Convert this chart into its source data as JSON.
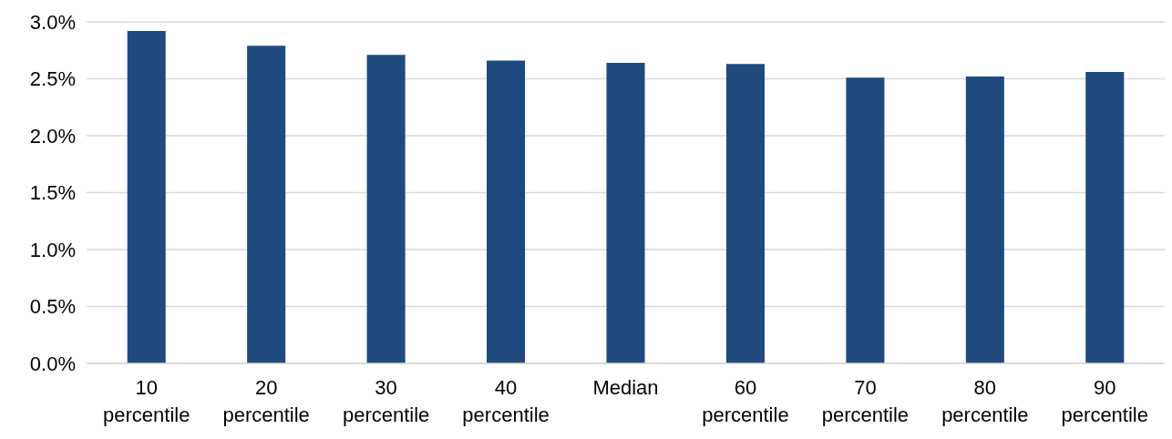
{
  "chart_data": {
    "type": "bar",
    "categories": [
      "10 percentile",
      "20 percentile",
      "30 percentile",
      "40 percentile",
      "Median",
      "60 percentile",
      "70 percentile",
      "80 percentile",
      "90 percentile"
    ],
    "values": [
      2.92,
      2.79,
      2.71,
      2.66,
      2.64,
      2.63,
      2.51,
      2.52,
      2.56
    ],
    "color": "#204a7e",
    "ylim": [
      0,
      3
    ],
    "yticks": [
      {
        "value": 0,
        "label": "0.0%"
      },
      {
        "value": 0.5,
        "label": "0.5%"
      },
      {
        "value": 1,
        "label": "1.0%"
      },
      {
        "value": 1.5,
        "label": "1.5%"
      },
      {
        "value": 2,
        "label": "2.0%"
      },
      {
        "value": 2.5,
        "label": "2.5%"
      },
      {
        "value": 3,
        "label": "3.0%"
      }
    ],
    "grid": "y"
  }
}
